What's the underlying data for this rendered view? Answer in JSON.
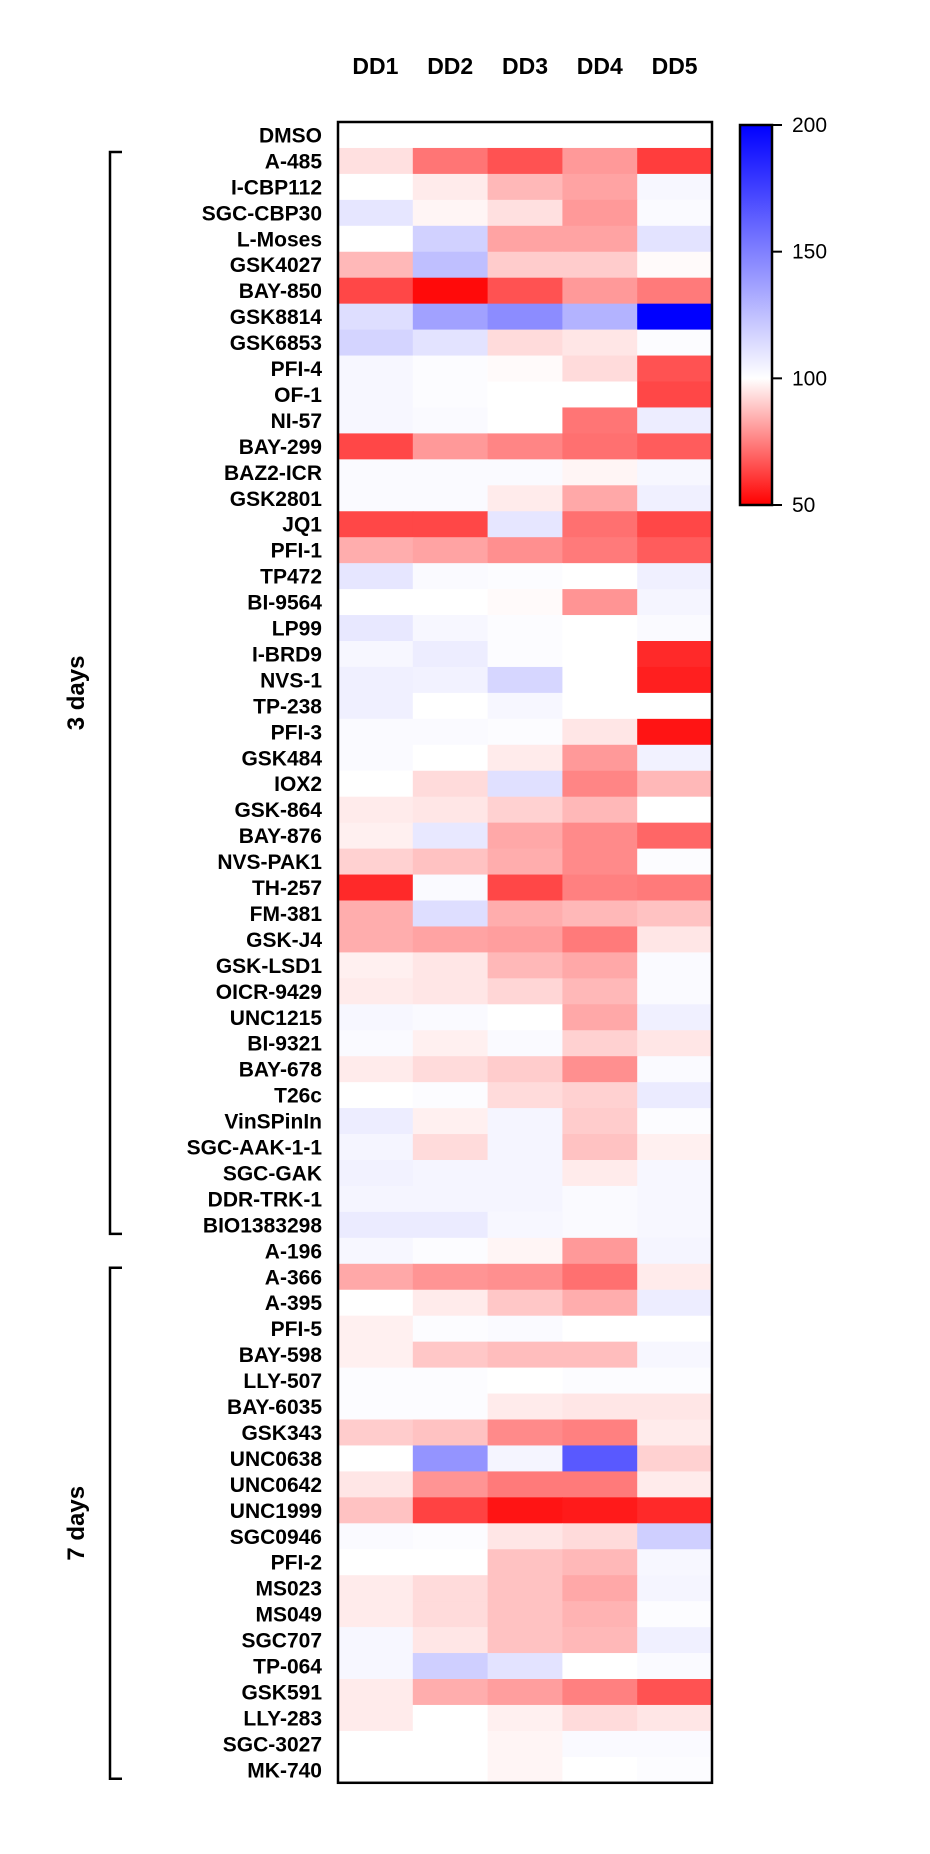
{
  "chart_data": {
    "type": "heatmap",
    "title": "",
    "columns": [
      "DD1",
      "DD2",
      "DD3",
      "DD4",
      "DD5"
    ],
    "rows": [
      "DMSO",
      "A-485",
      "I-CBP112",
      "SGC-CBP30",
      "L-Moses",
      "GSK4027",
      "BAY-850",
      "GSK8814",
      "GSK6853",
      "PFI-4",
      "OF-1",
      "NI-57",
      "BAY-299",
      "BAZ2-ICR",
      "GSK2801",
      "JQ1",
      "PFI-1",
      "TP472",
      "BI-9564",
      "LP99",
      "I-BRD9",
      "NVS-1",
      "TP-238",
      "PFI-3",
      "GSK484",
      "IOX2",
      "GSK-864",
      "BAY-876",
      "NVS-PAK1",
      "TH-257",
      "FM-381",
      "GSK-J4",
      "GSK-LSD1",
      "OICR-9429",
      "UNC1215",
      "BI-9321",
      "BAY-678",
      "T26c",
      "VinSPinIn",
      "SGC-AAK-1-1",
      "SGC-GAK",
      "DDR-TRK-1",
      "BIO1383298",
      "A-196",
      "A-366",
      "A-395",
      "PFI-5",
      "BAY-598",
      "LLY-507",
      "BAY-6035",
      "GSK343",
      "UNC0638",
      "UNC0642",
      "UNC1999",
      "SGC0946",
      "PFI-2",
      "MS023",
      "MS049",
      "SGC707",
      "TP-064",
      "GSK591",
      "LLY-283",
      "SGC-3027",
      "MK-740"
    ],
    "values": [
      [
        100,
        100,
        100,
        100,
        100
      ],
      [
        94,
        73,
        66,
        80,
        62
      ],
      [
        100,
        96,
        86,
        82,
        103
      ],
      [
        110,
        98,
        94,
        80,
        102
      ],
      [
        100,
        118,
        82,
        82,
        111
      ],
      [
        86,
        125,
        90,
        90,
        99
      ],
      [
        64,
        52,
        66,
        80,
        74
      ],
      [
        113,
        137,
        145,
        130,
        200
      ],
      [
        117,
        111,
        93,
        95,
        101
      ],
      [
        103,
        101,
        99,
        93,
        66
      ],
      [
        103,
        101,
        100,
        100,
        64
      ],
      [
        103,
        102,
        100,
        73,
        107
      ],
      [
        64,
        80,
        76,
        72,
        68
      ],
      [
        102,
        102,
        102,
        98,
        103
      ],
      [
        102,
        102,
        96,
        83,
        106
      ],
      [
        64,
        64,
        110,
        72,
        64
      ],
      [
        84,
        82,
        78,
        74,
        68
      ],
      [
        110,
        102,
        101,
        100,
        106
      ],
      [
        100,
        100,
        99,
        79,
        104
      ],
      [
        109,
        103,
        101,
        100,
        102
      ],
      [
        103,
        107,
        101,
        100,
        58
      ],
      [
        106,
        105,
        116,
        100,
        56
      ],
      [
        106,
        100,
        103,
        100,
        100
      ],
      [
        102,
        102,
        101,
        95,
        54
      ],
      [
        102,
        100,
        96,
        80,
        105
      ],
      [
        100,
        93,
        112,
        76,
        86
      ],
      [
        96,
        95,
        91,
        86,
        100
      ],
      [
        97,
        109,
        83,
        77,
        70
      ],
      [
        91,
        88,
        84,
        77,
        101
      ],
      [
        58,
        102,
        64,
        75,
        74
      ],
      [
        84,
        113,
        84,
        86,
        88
      ],
      [
        84,
        82,
        81,
        74,
        95
      ],
      [
        97,
        95,
        86,
        83,
        102
      ],
      [
        96,
        95,
        92,
        86,
        102
      ],
      [
        103,
        102,
        100,
        83,
        106
      ],
      [
        102,
        97,
        102,
        91,
        95
      ],
      [
        96,
        93,
        90,
        78,
        102
      ],
      [
        100,
        101,
        93,
        91,
        108
      ],
      [
        107,
        97,
        104,
        90,
        101
      ],
      [
        104,
        93,
        104,
        88,
        97
      ],
      [
        105,
        104,
        104,
        96,
        103
      ],
      [
        104,
        104,
        104,
        102,
        103
      ],
      [
        108,
        108,
        103,
        102,
        103
      ],
      [
        103,
        101,
        98,
        80,
        104
      ],
      [
        83,
        79,
        78,
        72,
        96
      ],
      [
        100,
        96,
        89,
        84,
        107
      ],
      [
        97,
        101,
        102,
        100,
        100
      ],
      [
        97,
        89,
        87,
        87,
        103
      ],
      [
        101,
        101,
        100,
        101,
        101
      ],
      [
        101,
        101,
        96,
        95,
        95
      ],
      [
        90,
        88,
        77,
        75,
        96
      ],
      [
        100,
        142,
        104,
        165,
        91
      ],
      [
        95,
        79,
        74,
        74,
        96
      ],
      [
        88,
        63,
        54,
        55,
        58
      ],
      [
        102,
        101,
        95,
        93,
        119
      ],
      [
        100,
        100,
        88,
        86,
        103
      ],
      [
        96,
        93,
        88,
        83,
        104
      ],
      [
        96,
        93,
        88,
        85,
        101
      ],
      [
        103,
        95,
        88,
        86,
        106
      ],
      [
        103,
        119,
        111,
        100,
        102
      ],
      [
        96,
        84,
        81,
        75,
        66
      ],
      [
        96,
        100,
        97,
        93,
        95
      ],
      [
        100,
        100,
        98,
        102,
        102
      ],
      [
        100,
        100,
        98,
        100,
        101
      ]
    ],
    "colorscale": {
      "min": 50,
      "mid": 100,
      "max": 200,
      "low_color": "#ff0000",
      "mid_color": "#ffffff",
      "high_color": "#0000ff",
      "ticks": [
        50,
        100,
        150,
        200
      ]
    },
    "groups": [
      {
        "label": "3 days",
        "first_row": "A-485",
        "last_row": "BIO1383298"
      },
      {
        "label": "7 days",
        "first_row": "A-366",
        "last_row": "MK-740"
      }
    ],
    "legend": "colorbar-right"
  }
}
